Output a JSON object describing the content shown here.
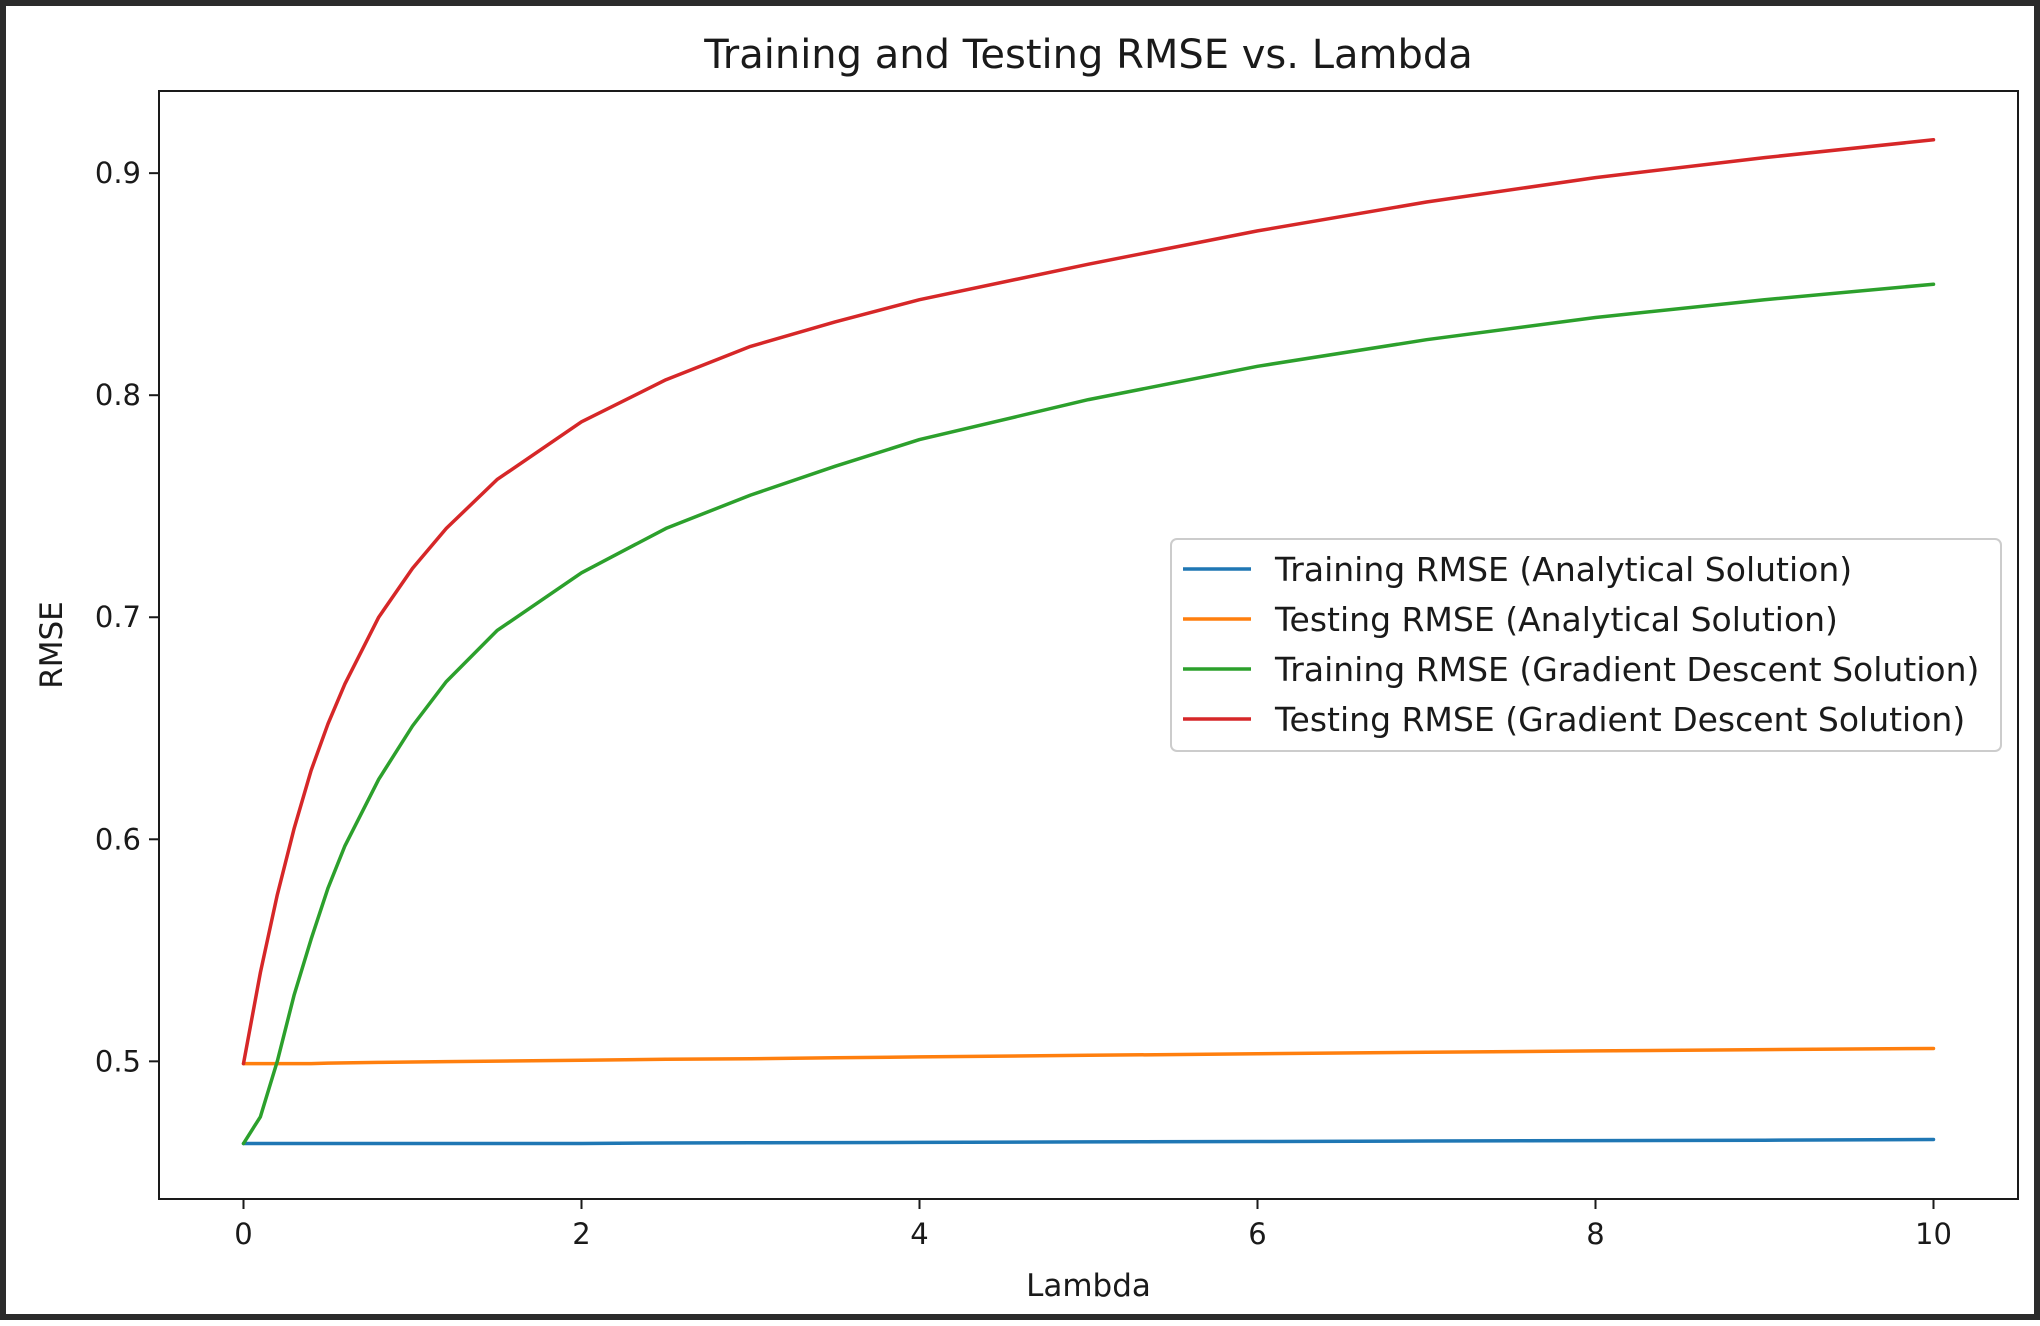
{
  "chart_data": {
    "type": "line",
    "title": "Training and Testing RMSE vs. Lambda",
    "xlabel": "Lambda",
    "ylabel": "RMSE",
    "xlim": [
      -0.5,
      10.5
    ],
    "ylim": [
      0.438,
      0.937
    ],
    "xticks": [
      0,
      2,
      4,
      6,
      8,
      10
    ],
    "xtick_labels": [
      "0",
      "2",
      "4",
      "6",
      "8",
      "10"
    ],
    "yticks": [
      0.5,
      0.6,
      0.7,
      0.8,
      0.9
    ],
    "ytick_labels": [
      "0.5",
      "0.6",
      "0.7",
      "0.8",
      "0.9"
    ],
    "grid": false,
    "legend_position": "center-right",
    "x": [
      0,
      0.1,
      0.2,
      0.3,
      0.4,
      0.5,
      0.6,
      0.8,
      1.0,
      1.2,
      1.5,
      2.0,
      2.5,
      3.0,
      3.5,
      4.0,
      5.0,
      6.0,
      7.0,
      8.0,
      9.0,
      10.0
    ],
    "series": [
      {
        "name": "Training RMSE (Analytical Solution)",
        "color": "#1f77b4",
        "values": [
          0.463,
          0.463,
          0.463,
          0.463,
          0.463,
          0.463,
          0.463,
          0.463,
          0.463,
          0.463,
          0.463,
          0.463,
          0.4632,
          0.4633,
          0.4634,
          0.4635,
          0.4637,
          0.4639,
          0.4641,
          0.4643,
          0.4645,
          0.4648
        ]
      },
      {
        "name": "Testing RMSE (Analytical Solution)",
        "color": "#ff7f0e",
        "values": [
          0.499,
          0.499,
          0.499,
          0.499,
          0.499,
          0.4992,
          0.4993,
          0.4995,
          0.4997,
          0.4999,
          0.5001,
          0.5005,
          0.5009,
          0.5012,
          0.5016,
          0.502,
          0.5027,
          0.5034,
          0.5041,
          0.5047,
          0.5053,
          0.5058
        ]
      },
      {
        "name": "Training RMSE (Gradient Descent Solution)",
        "color": "#2ca02c",
        "values": [
          0.463,
          0.475,
          0.5,
          0.53,
          0.555,
          0.578,
          0.597,
          0.627,
          0.651,
          0.671,
          0.694,
          0.72,
          0.74,
          0.755,
          0.768,
          0.78,
          0.798,
          0.813,
          0.825,
          0.835,
          0.843,
          0.85
        ]
      },
      {
        "name": "Testing RMSE (Gradient Descent Solution)",
        "color": "#d62728",
        "values": [
          0.499,
          0.54,
          0.575,
          0.605,
          0.631,
          0.652,
          0.67,
          0.7,
          0.722,
          0.74,
          0.762,
          0.788,
          0.807,
          0.822,
          0.833,
          0.843,
          0.859,
          0.874,
          0.887,
          0.898,
          0.907,
          0.915
        ]
      }
    ]
  }
}
